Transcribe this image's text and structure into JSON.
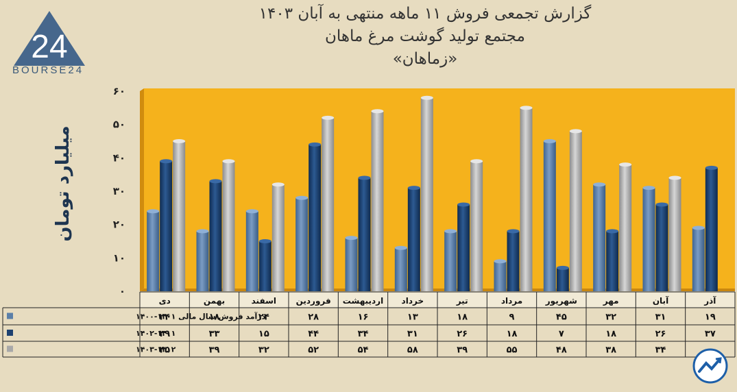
{
  "title_lines": [
    "گزارش تجمعی فروش ۱۱ ماهه منتهی به آبان ۱۴۰۳",
    "مجتمع تولید گوشت مرغ ماهان",
    "«زماهان»"
  ],
  "logo": {
    "text": "BOURSE24",
    "glyph": "24"
  },
  "colors": {
    "background": "#e7dcc0",
    "plot": "#f5b21c",
    "series1": "#5b7fa8",
    "series2": "#1d4170",
    "series3": "#a8a8a8"
  },
  "chart_data": {
    "type": "bar",
    "categories": [
      "آذر",
      "آبان",
      "مهر",
      "شهریور",
      "مرداد",
      "تیر",
      "خرداد",
      "اردیبهشت",
      "فروردین",
      "اسفند",
      "بهمن",
      "دی"
    ],
    "series": [
      {
        "name": "درآمد فروش سال مالی ۱۴۰۱-۱۴۰۰",
        "values": [
          19,
          31,
          32,
          45,
          9,
          18,
          13,
          16,
          28,
          24,
          18,
          24
        ],
        "labels": [
          "۱۹",
          "۳۱",
          "۳۲",
          "۴۵",
          "۹",
          "۱۸",
          "۱۳",
          "۱۶",
          "۲۸",
          "۲۴",
          "۱۸",
          "۲۴"
        ]
      },
      {
        "name": "۱۴۰۲-۱۴۰۱",
        "values": [
          37,
          26,
          18,
          7,
          18,
          26,
          31,
          34,
          44,
          15,
          33,
          39
        ],
        "labels": [
          "۳۷",
          "۲۶",
          "۱۸",
          "۷",
          "۱۸",
          "۲۶",
          "۳۱",
          "۳۴",
          "۴۴",
          "۱۵",
          "۳۳",
          "۳۹"
        ]
      },
      {
        "name": "۱۴۰۳-۱۴۰۲",
        "values": [
          null,
          34,
          38,
          48,
          55,
          39,
          58,
          54,
          52,
          32,
          39,
          45
        ],
        "labels": [
          "",
          "۳۴",
          "۳۸",
          "۴۸",
          "۵۵",
          "۳۹",
          "۵۸",
          "۵۴",
          "۵۲",
          "۳۲",
          "۳۹",
          "۴۵"
        ]
      }
    ],
    "ylabel": "میلیارد تومان",
    "ylim": [
      0,
      60
    ],
    "yticks": [
      0,
      10,
      20,
      30,
      40,
      50,
      60
    ],
    "ytick_labels": [
      "۰",
      "۱۰",
      "۲۰",
      "۳۰",
      "۴۰",
      "۵۰",
      "۶۰"
    ],
    "grid": false,
    "legend": "data-table-left"
  }
}
